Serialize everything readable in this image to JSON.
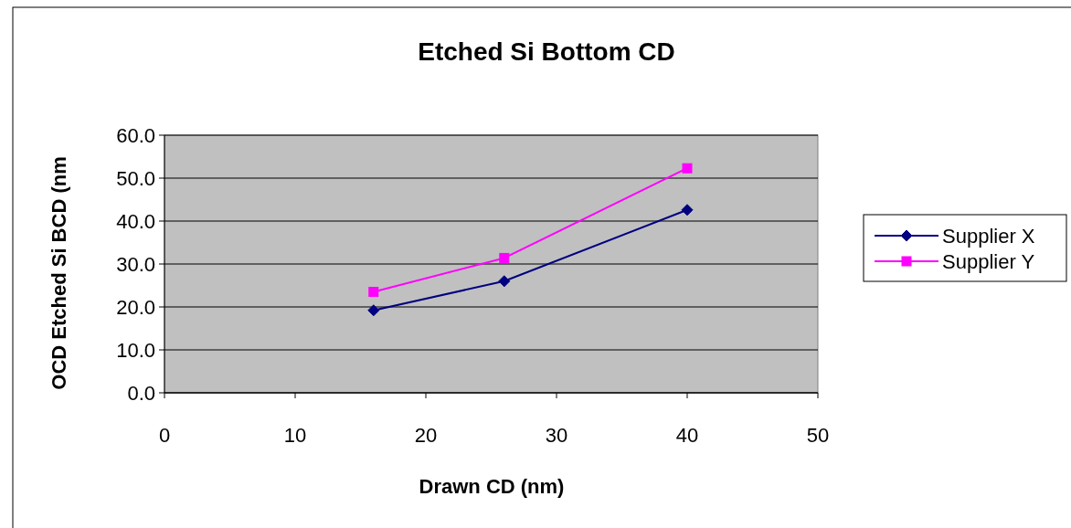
{
  "chart_data": {
    "type": "line",
    "title": "Etched Si Bottom CD",
    "xlabel": "Drawn CD (nm)",
    "ylabel": "OCD Etched Si BCD (nm",
    "x": [
      16,
      26,
      40
    ],
    "series": [
      {
        "name": "Supplier X",
        "color": "#000080",
        "marker": "diamond",
        "values": [
          19.2,
          26.0,
          42.6
        ]
      },
      {
        "name": "Supplier Y",
        "color": "#ff00ff",
        "marker": "square",
        "values": [
          23.5,
          31.4,
          52.3
        ]
      }
    ],
    "xlim": [
      0,
      50
    ],
    "xticks": [
      0,
      10,
      20,
      30,
      40,
      50
    ],
    "ylim": [
      0,
      60
    ],
    "yticks": [
      {
        "value": 0,
        "label": "0.0"
      },
      {
        "value": 10,
        "label": "10.0"
      },
      {
        "value": 20,
        "label": "20.0"
      },
      {
        "value": 30,
        "label": "30.0"
      },
      {
        "value": 40,
        "label": "40.0"
      },
      {
        "value": 50,
        "label": "50.0"
      },
      {
        "value": 60,
        "label": "60.0"
      }
    ],
    "grid": "y",
    "legend": "right"
  }
}
